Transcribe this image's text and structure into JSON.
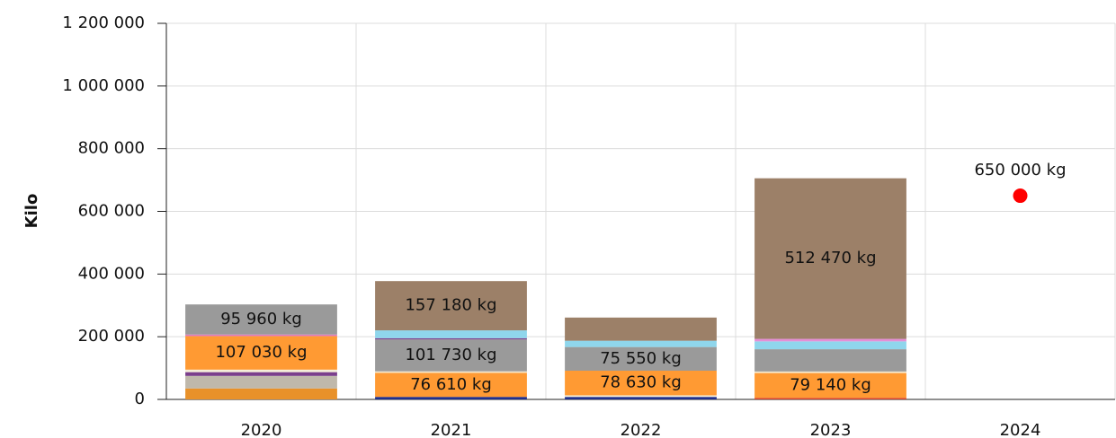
{
  "chart_data": {
    "type": "bar",
    "stacked": true,
    "y_label": "Kilo",
    "categories": [
      "2020",
      "2021",
      "2022",
      "2023",
      "2024"
    ],
    "ylim": [
      0,
      1200000
    ],
    "yticks": [
      0,
      {
        "value": 200000,
        "label": "200 000"
      },
      {
        "value": 400000,
        "label": "400 000"
      },
      {
        "value": 600000,
        "label": "600 000"
      },
      {
        "value": 800000,
        "label": "800 000"
      },
      {
        "value": 1000000,
        "label": "1 000 000"
      },
      {
        "value": 1200000,
        "label": "1 200 000"
      }
    ],
    "grid": true,
    "series": [
      {
        "color": "#1f2f8c",
        "values": [
          null,
          8000,
          8000,
          null,
          null
        ]
      },
      {
        "color": "#d9462a",
        "values": [
          null,
          null,
          null,
          5000,
          null
        ]
      },
      {
        "color": "#e8912a",
        "values": [
          35000,
          null,
          null,
          null,
          null
        ]
      },
      {
        "color": "#bfb8ab",
        "values": [
          40000,
          null,
          null,
          null,
          null
        ]
      },
      {
        "color": "#7b3f8c",
        "values": [
          12000,
          null,
          null,
          null,
          null
        ]
      },
      {
        "color": "#f5eed8",
        "values": [
          8000,
          null,
          5000,
          null,
          null
        ]
      },
      {
        "color": "#ff9a33",
        "values": [
          107030,
          76610,
          78630,
          79140,
          null
        ],
        "value_labels": [
          "107 030 kg",
          "76 610 kg",
          "78 630 kg",
          "79 140 kg",
          null
        ]
      },
      {
        "color": "#f5e6c8",
        "values": [
          null,
          5000,
          null,
          5000,
          null
        ]
      },
      {
        "color": "#e07bc0",
        "values": [
          5000,
          null,
          null,
          null,
          null
        ]
      },
      {
        "color": "#9a9a9a",
        "values": [
          95960,
          101730,
          75550,
          71000,
          null
        ],
        "value_labels": [
          "95 960 kg",
          "101 730 kg",
          "75 550 kg",
          null,
          null
        ]
      },
      {
        "color": "#7b3f8c",
        "values": [
          null,
          4000,
          null,
          null,
          null
        ]
      },
      {
        "color": "#8fd6ec",
        "values": [
          null,
          25000,
          20000,
          25000,
          null
        ]
      },
      {
        "color": "#e58fd6",
        "values": [
          null,
          null,
          null,
          8000,
          null
        ]
      },
      {
        "color": "#9c8068",
        "values": [
          null,
          157180,
          74000,
          512470,
          null
        ],
        "value_labels": [
          null,
          "157 180 kg",
          null,
          "512 470 kg",
          null
        ]
      }
    ],
    "points": {
      "color": "#ff0000",
      "values": [
        null,
        null,
        null,
        null,
        650000
      ],
      "value_labels": [
        null,
        null,
        null,
        null,
        "650 000 kg"
      ]
    }
  }
}
